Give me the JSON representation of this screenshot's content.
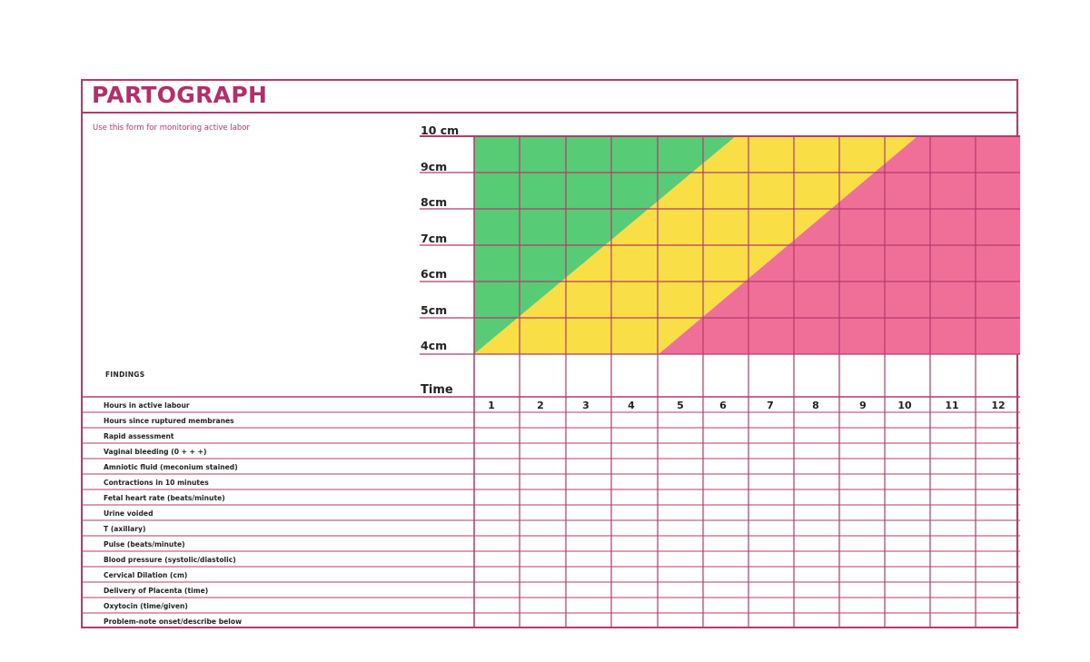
{
  "header": {
    "title": "PARTOGRAPH",
    "subtitle": "Use this form for monitoring active labor"
  },
  "dilation_scale": {
    "labels": [
      "10 cm",
      "9cm",
      "8cm",
      "7cm",
      "6cm",
      "5cm",
      "4cm"
    ],
    "time_label": "Time"
  },
  "zones": {
    "alert_colors": {
      "normal": "#57cb76",
      "alert": "#f9df45",
      "action": "#ef6f98"
    }
  },
  "findings": {
    "heading": "FINDINGS",
    "rows": [
      "Hours in active labour",
      "Hours since ruptured membranes",
      "Rapid assessment",
      "Vaginal bleeding (0 + + +)",
      "Amniotic fluid (meconium stained)",
      "Contractions in 10 minutes",
      "Fetal heart rate (beats/minute)",
      "Urine voided",
      "T (axillary)",
      "Pulse (beats/minute)",
      "Blood pressure (systolic/diastolic)",
      "Cervical Dilation (cm)",
      "Delivery of Placenta (time)",
      "Oxytocin (time/given)",
      "Problem-note onset/describe below"
    ],
    "hours": [
      "1",
      "2",
      "3",
      "4",
      "5",
      "6",
      "7",
      "8",
      "9",
      "10",
      "11",
      "12"
    ]
  },
  "colors": {
    "border": "#b53a6e",
    "title": "#b32f6b"
  }
}
